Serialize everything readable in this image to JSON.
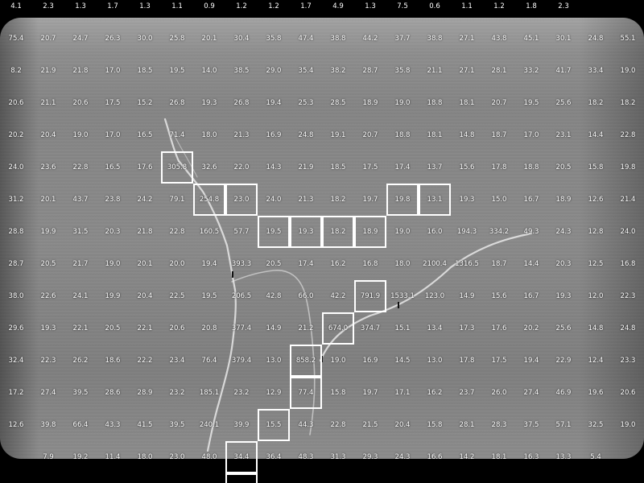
{
  "rows": [
    [
      "4.1",
      "2.3",
      "1.3",
      "1.7",
      "1.3",
      "1.1",
      "0.9",
      "1.2",
      "1.2",
      "1.7",
      "4.9",
      "1.3",
      "7.5",
      "0.6",
      "1.1",
      "1.2",
      "1.8",
      "2.3",
      "",
      ""
    ],
    [
      "75.4",
      "20.7",
      "24.7",
      "26.3",
      "30.0",
      "25.8",
      "20.1",
      "30.4",
      "35.8",
      "47.4",
      "38.8",
      "44.2",
      "37.7",
      "38.8",
      "27.1",
      "43.8",
      "45.1",
      "30.1",
      "24.8",
      "55.1"
    ],
    [
      "8.2",
      "21.9",
      "21.8",
      "17.0",
      "18.5",
      "19.5",
      "14.0",
      "38.5",
      "29.0",
      "35.4",
      "38.2",
      "28.7",
      "35.8",
      "21.1",
      "27.1",
      "28.1",
      "33.2",
      "41.7",
      "33.4",
      "19.0"
    ],
    [
      "20.6",
      "21.1",
      "20.6",
      "17.5",
      "15.2",
      "26.8",
      "19.3",
      "26.8",
      "19.4",
      "25.3",
      "28.5",
      "18.9",
      "19.0",
      "18.8",
      "18.1",
      "20.7",
      "19.5",
      "25.6",
      "18.2",
      "18.2"
    ],
    [
      "20.2",
      "20.4",
      "19.0",
      "17.0",
      "16.5",
      "71.4",
      "18.0",
      "21.3",
      "16.9",
      "24.8",
      "19.1",
      "20.7",
      "18.8",
      "18.1",
      "14.8",
      "18.7",
      "17.0",
      "23.1",
      "14.4",
      "22.8"
    ],
    [
      "24.0",
      "23.6",
      "22.8",
      "16.5",
      "17.6",
      "305.8",
      "32.6",
      "22.0",
      "14.3",
      "21.9",
      "18.5",
      "17.5",
      "17.4",
      "13.7",
      "15.6",
      "17.8",
      "18.8",
      "20.5",
      "15.8",
      "19.8"
    ],
    [
      "31.2",
      "20.1",
      "43.7",
      "23.8",
      "24.2",
      "79.1",
      "254.8",
      "23.0",
      "24.0",
      "21.3",
      "18.2",
      "19.7",
      "19.8",
      "13.1",
      "19.3",
      "15.0",
      "16.7",
      "18.9",
      "12.6",
      "21.4"
    ],
    [
      "28.8",
      "19.9",
      "31.5",
      "20.3",
      "21.8",
      "22.8",
      "160.5",
      "57.7",
      "19.5",
      "19.3",
      "18.2",
      "18.9",
      "19.0",
      "16.0",
      "194.3",
      "334.2",
      "49.3",
      "24.3",
      "12.8",
      "24.0"
    ],
    [
      "28.7",
      "20.5",
      "21.7",
      "19.0",
      "20.1",
      "20.0",
      "19.4",
      "393.3",
      "20.5",
      "17.4",
      "16.2",
      "16.8",
      "18.0",
      "2100.4",
      "1316.5",
      "18.7",
      "14.4",
      "20.3",
      "12.5",
      "16.8"
    ],
    [
      "38.0",
      "22.6",
      "24.1",
      "19.9",
      "20.4",
      "22.5",
      "19.5",
      "206.5",
      "42.8",
      "66.0",
      "42.2",
      "791.9",
      "1533.1",
      "123.0",
      "14.9",
      "15.6",
      "16.7",
      "19.3",
      "12.0",
      "22.3"
    ],
    [
      "29.6",
      "19.3",
      "22.1",
      "20.5",
      "22.1",
      "20.6",
      "20.8",
      "377.4",
      "14.9",
      "21.2",
      "674.0",
      "374.7",
      "15.1",
      "13.4",
      "17.3",
      "17.6",
      "20.2",
      "25.6",
      "14.8",
      "24.8"
    ],
    [
      "32.4",
      "22.3",
      "26.2",
      "18.6",
      "22.2",
      "23.4",
      "76.4",
      "379.4",
      "13.0",
      "858.2",
      "19.0",
      "16.9",
      "14.5",
      "13.0",
      "17.8",
      "17.5",
      "19.4",
      "22.9",
      "12.4",
      "23.3"
    ],
    [
      "17.2",
      "27.4",
      "39.5",
      "28.6",
      "28.9",
      "23.2",
      "185.1",
      "23.2",
      "12.9",
      "77.4",
      "15.8",
      "19.7",
      "17.1",
      "16.2",
      "23.7",
      "26.0",
      "27.4",
      "46.9",
      "19.6",
      "20.6"
    ],
    [
      "12.6",
      "39.8",
      "66.4",
      "43.3",
      "41.5",
      "39.5",
      "240.1",
      "39.9",
      "15.5",
      "44.3",
      "22.8",
      "21.5",
      "20.4",
      "15.8",
      "28.1",
      "28.3",
      "37.5",
      "57.1",
      "32.5",
      "19.0"
    ],
    [
      "",
      "7.9",
      "19.2",
      "11.4",
      "18.0",
      "23.0",
      "48.0",
      "34.4",
      "36.4",
      "48.3",
      "31.3",
      "29.3",
      "24.3",
      "16.6",
      "14.2",
      "18.1",
      "16.3",
      "13.3",
      "5.4",
      ""
    ]
  ],
  "highlighted_cells": [
    [
      5,
      5
    ],
    [
      6,
      6
    ],
    [
      7,
      6
    ],
    [
      8,
      7
    ],
    [
      9,
      7
    ],
    [
      10,
      7
    ],
    [
      11,
      7
    ],
    [
      12,
      6
    ],
    [
      13,
      6
    ],
    [
      11,
      9
    ],
    [
      10,
      10
    ],
    [
      9,
      11
    ],
    [
      9,
      12
    ],
    [
      8,
      13
    ],
    [
      7,
      14
    ],
    [
      7,
      15
    ]
  ]
}
